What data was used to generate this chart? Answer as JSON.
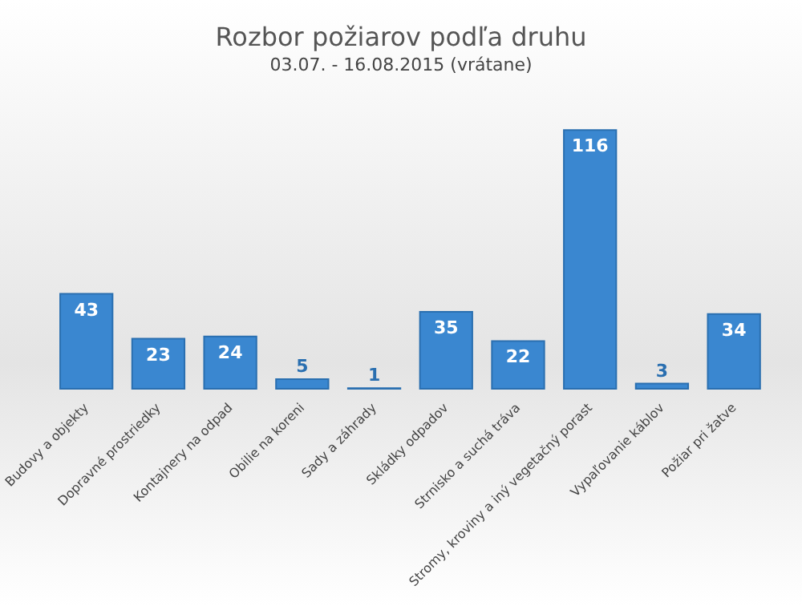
{
  "chart_data": {
    "type": "bar",
    "title": "Rozbor požiarov podľa druhu",
    "subtitle": "03.07. - 16.08.2015 (vrátane)",
    "categories": [
      "Budovy a objekty",
      "Dopravné prostriedky",
      "Kontajnery na odpad",
      "Obilie na koreni",
      "Sady a záhrady",
      "Skládky odpadov",
      "Strnisko a suchá tráva",
      "Stromy, kroviny a iný vegetačný porast",
      "Vypaľovanie káblov",
      "Požiar pri žatve"
    ],
    "values": [
      43,
      23,
      24,
      5,
      1,
      35,
      22,
      116,
      3,
      34
    ],
    "color": "#3a87d0",
    "data_labels": true,
    "grid": false
  }
}
